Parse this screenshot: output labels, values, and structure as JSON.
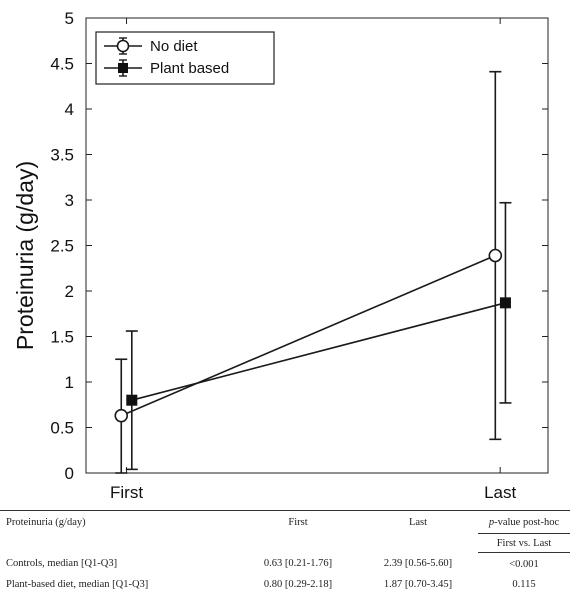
{
  "chart_data": {
    "type": "line",
    "title": "",
    "xlabel": "",
    "ylabel": "Proteinuria (g/day)",
    "categories": [
      "First",
      "Last"
    ],
    "ylim": [
      0,
      5
    ],
    "yticks": [
      0,
      0.5,
      1,
      1.5,
      2,
      2.5,
      3,
      3.5,
      4,
      4.5,
      5
    ],
    "ytick_labels": [
      "0",
      "0.5",
      "1",
      "1.5",
      "2",
      "2.5",
      "3",
      "3.5",
      "4",
      "4.5",
      "5"
    ],
    "grid": false,
    "legend_position": "top-left",
    "series": [
      {
        "name": "No diet",
        "marker": "open-circle",
        "x": [
          0.87,
          10.1
        ],
        "values": [
          0.63,
          2.39
        ],
        "err_low": [
          0.0,
          0.37
        ],
        "err_high": [
          1.25,
          4.41
        ]
      },
      {
        "name": "Plant based",
        "marker": "filled-square",
        "x": [
          1.13,
          10.35
        ],
        "values": [
          0.8,
          1.87
        ],
        "err_low": [
          0.04,
          0.77
        ],
        "err_high": [
          1.56,
          2.97
        ]
      }
    ],
    "colors": {
      "line": "#1a1a1a",
      "marker_fill_open": "#ffffff",
      "marker_fill_solid": "#111111"
    }
  },
  "table": {
    "header": {
      "measure": "Proteinuria (g/day)",
      "first": "First",
      "last": "Last",
      "pvalue_italic": "p",
      "pvalue_rest": "-value post-hoc",
      "comparison": "First vs. Last"
    },
    "rows": [
      {
        "label": "Controls, median [Q1-Q3]",
        "first": "0.63 [0.21-1.76]",
        "last": "2.39 [0.56-5.60]",
        "pvalue": "<0.001"
      },
      {
        "label": "Plant-based diet, median [Q1-Q3]",
        "first": "0.80 [0.29-2.18]",
        "last": "1.87 [0.70-3.45]",
        "pvalue": "0.115"
      }
    ]
  }
}
